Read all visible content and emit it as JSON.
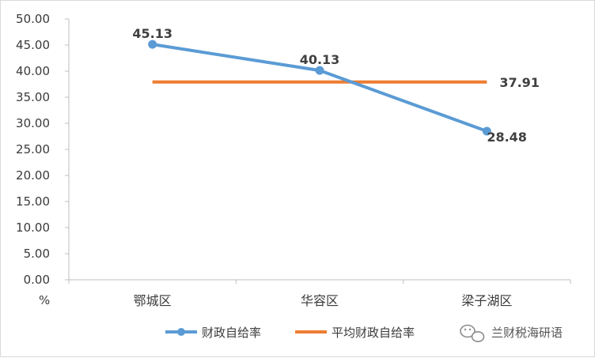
{
  "chart_data": {
    "type": "line",
    "categories": [
      "鄂城区",
      "华容区",
      "梁子湖区"
    ],
    "series": [
      {
        "name": "财政自给率",
        "values": [
          45.13,
          40.13,
          28.48
        ],
        "color": "#5b9bd5",
        "labels": [
          "45.13",
          "40.13",
          "28.48"
        ]
      },
      {
        "name": "平均财政自给率",
        "values": [
          37.91,
          37.91,
          37.91
        ],
        "color": "#ed7d31",
        "labels": [
          "37.91"
        ]
      }
    ],
    "ylabel": "%",
    "ylim": [
      0,
      50
    ],
    "y_ticks": [
      "0.00",
      "5.00",
      "10.00",
      "15.00",
      "20.00",
      "25.00",
      "30.00",
      "35.00",
      "40.00",
      "45.00",
      "50.00"
    ],
    "grid": false,
    "legend_position": "bottom"
  },
  "watermark": {
    "text": "兰财税海研语",
    "icon": "wechat-icon"
  }
}
